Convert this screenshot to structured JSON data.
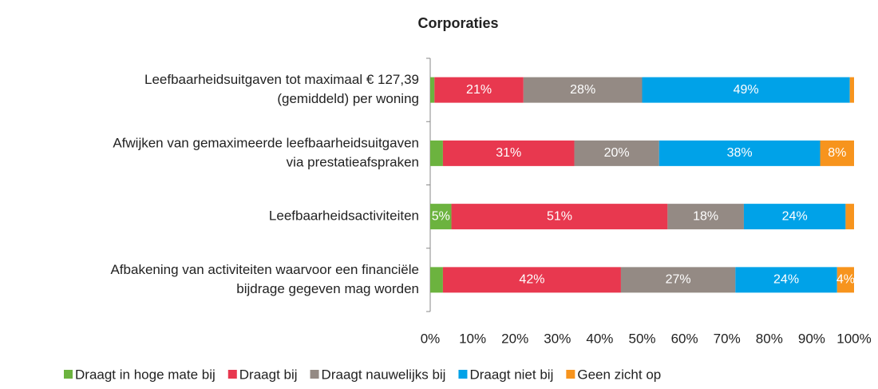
{
  "chart_data": {
    "type": "stacked-barh",
    "title": "Corporaties",
    "categories": [
      [
        "Leefbaarheidsuitgaven tot maximaal € 127,39",
        "(gemiddeld) per woning"
      ],
      [
        "Afwijken van gemaximeerde leefbaarheidsuitgaven",
        "via prestatieafspraken"
      ],
      [
        "Leefbaarheidsactiviteiten"
      ],
      [
        "Afbakening van activiteiten waarvoor een financiële",
        "bijdrage gegeven mag worden"
      ]
    ],
    "series": [
      {
        "name": "Draagt in hoge mate bij",
        "color": "#6cb33f",
        "values": [
          1,
          3,
          5,
          3
        ],
        "value_labels": [
          null,
          null,
          "5%",
          null
        ]
      },
      {
        "name": "Draagt bij",
        "color": "#e8384f",
        "values": [
          21,
          31,
          51,
          42
        ],
        "value_labels": [
          "21%",
          "31%",
          "51%",
          "42%"
        ]
      },
      {
        "name": "Draagt nauwelijks bij",
        "color": "#948a84",
        "values": [
          28,
          20,
          18,
          27
        ],
        "value_labels": [
          "28%",
          "20%",
          "18%",
          "27%"
        ]
      },
      {
        "name": "Draagt niet bij",
        "color": "#00a2e8",
        "values": [
          49,
          38,
          24,
          24
        ],
        "value_labels": [
          "49%",
          "38%",
          "24%",
          "24%"
        ]
      },
      {
        "name": "Geen zicht op",
        "color": "#f7941d",
        "values": [
          1,
          8,
          2,
          4
        ],
        "value_labels": [
          null,
          "8%",
          null,
          "4%"
        ]
      }
    ],
    "xlim": [
      0,
      100
    ],
    "xticks": [
      {
        "value": 0,
        "label": "0%"
      },
      {
        "value": 10,
        "label": "10%"
      },
      {
        "value": 20,
        "label": "20%"
      },
      {
        "value": 30,
        "label": "30%"
      },
      {
        "value": 40,
        "label": "40%"
      },
      {
        "value": 50,
        "label": "50%"
      },
      {
        "value": 60,
        "label": "60%"
      },
      {
        "value": 70,
        "label": "70%"
      },
      {
        "value": 80,
        "label": "80%"
      },
      {
        "value": 90,
        "label": "90%"
      },
      {
        "value": 100,
        "label": "100%"
      }
    ],
    "legend": "bottom"
  }
}
